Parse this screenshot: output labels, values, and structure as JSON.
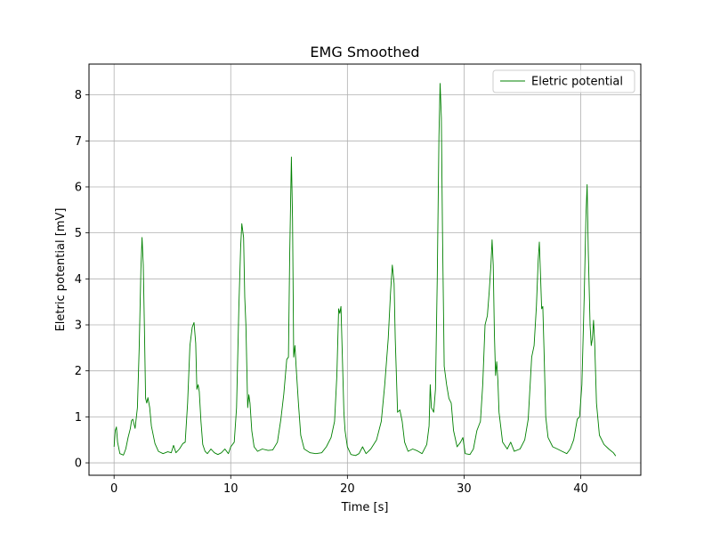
{
  "chart_data": {
    "type": "line",
    "title": "EMG Smoothed",
    "xlabel": "Time [s]",
    "ylabel": "Eletric potential [mV]",
    "xlim": [
      -2.15,
      45.15
    ],
    "ylim": [
      -0.27,
      8.67
    ],
    "xticks": [
      0,
      10,
      20,
      30,
      40
    ],
    "yticks": [
      0,
      1,
      2,
      3,
      4,
      5,
      6,
      7,
      8
    ],
    "grid": true,
    "legend": {
      "placement": "upper right"
    },
    "series": [
      {
        "name": "Eletric potential",
        "color": "#008000",
        "points": [
          [
            0.0,
            0.35
          ],
          [
            0.1,
            0.7
          ],
          [
            0.2,
            0.78
          ],
          [
            0.3,
            0.45
          ],
          [
            0.5,
            0.2
          ],
          [
            0.8,
            0.17
          ],
          [
            1.0,
            0.3
          ],
          [
            1.2,
            0.55
          ],
          [
            1.4,
            0.75
          ],
          [
            1.5,
            0.92
          ],
          [
            1.6,
            0.95
          ],
          [
            1.8,
            0.75
          ],
          [
            2.0,
            1.2
          ],
          [
            2.15,
            2.5
          ],
          [
            2.3,
            4.2
          ],
          [
            2.4,
            4.9
          ],
          [
            2.5,
            4.3
          ],
          [
            2.6,
            2.9
          ],
          [
            2.7,
            1.4
          ],
          [
            2.8,
            1.3
          ],
          [
            2.9,
            1.42
          ],
          [
            3.05,
            1.2
          ],
          [
            3.2,
            0.8
          ],
          [
            3.5,
            0.42
          ],
          [
            3.8,
            0.25
          ],
          [
            4.2,
            0.2
          ],
          [
            4.6,
            0.24
          ],
          [
            4.9,
            0.22
          ],
          [
            5.1,
            0.38
          ],
          [
            5.3,
            0.22
          ],
          [
            5.6,
            0.3
          ],
          [
            5.9,
            0.42
          ],
          [
            6.1,
            0.45
          ],
          [
            6.3,
            1.3
          ],
          [
            6.5,
            2.55
          ],
          [
            6.7,
            2.95
          ],
          [
            6.85,
            3.05
          ],
          [
            7.0,
            2.6
          ],
          [
            7.1,
            1.6
          ],
          [
            7.2,
            1.7
          ],
          [
            7.3,
            1.55
          ],
          [
            7.45,
            0.9
          ],
          [
            7.6,
            0.4
          ],
          [
            7.8,
            0.25
          ],
          [
            8.0,
            0.2
          ],
          [
            8.3,
            0.3
          ],
          [
            8.6,
            0.22
          ],
          [
            8.9,
            0.18
          ],
          [
            9.2,
            0.22
          ],
          [
            9.5,
            0.3
          ],
          [
            9.8,
            0.2
          ],
          [
            10.0,
            0.35
          ],
          [
            10.3,
            0.45
          ],
          [
            10.5,
            1.2
          ],
          [
            10.7,
            3.4
          ],
          [
            10.85,
            4.7
          ],
          [
            10.95,
            5.2
          ],
          [
            11.1,
            4.9
          ],
          [
            11.2,
            3.6
          ],
          [
            11.3,
            3.0
          ],
          [
            11.45,
            1.2
          ],
          [
            11.55,
            1.48
          ],
          [
            11.65,
            1.3
          ],
          [
            11.8,
            0.7
          ],
          [
            12.0,
            0.35
          ],
          [
            12.3,
            0.25
          ],
          [
            12.7,
            0.3
          ],
          [
            13.2,
            0.27
          ],
          [
            13.6,
            0.28
          ],
          [
            14.0,
            0.45
          ],
          [
            14.3,
            0.95
          ],
          [
            14.55,
            1.5
          ],
          [
            14.8,
            2.25
          ],
          [
            14.95,
            2.3
          ],
          [
            15.05,
            4.5
          ],
          [
            15.2,
            6.65
          ],
          [
            15.3,
            5.3
          ],
          [
            15.4,
            2.3
          ],
          [
            15.5,
            2.55
          ],
          [
            15.6,
            2.1
          ],
          [
            15.8,
            1.3
          ],
          [
            16.0,
            0.6
          ],
          [
            16.3,
            0.3
          ],
          [
            16.8,
            0.22
          ],
          [
            17.3,
            0.2
          ],
          [
            17.8,
            0.22
          ],
          [
            18.2,
            0.35
          ],
          [
            18.6,
            0.55
          ],
          [
            18.9,
            0.9
          ],
          [
            19.1,
            1.9
          ],
          [
            19.25,
            3.35
          ],
          [
            19.35,
            3.25
          ],
          [
            19.45,
            3.4
          ],
          [
            19.55,
            2.5
          ],
          [
            19.7,
            1.1
          ],
          [
            19.8,
            0.7
          ],
          [
            20.0,
            0.35
          ],
          [
            20.3,
            0.18
          ],
          [
            20.7,
            0.16
          ],
          [
            21.0,
            0.2
          ],
          [
            21.3,
            0.35
          ],
          [
            21.6,
            0.2
          ],
          [
            22.0,
            0.3
          ],
          [
            22.5,
            0.5
          ],
          [
            22.9,
            0.9
          ],
          [
            23.2,
            1.7
          ],
          [
            23.5,
            2.7
          ],
          [
            23.7,
            3.7
          ],
          [
            23.85,
            4.3
          ],
          [
            24.0,
            3.9
          ],
          [
            24.1,
            2.7
          ],
          [
            24.3,
            1.1
          ],
          [
            24.5,
            1.15
          ],
          [
            24.7,
            0.9
          ],
          [
            24.9,
            0.45
          ],
          [
            25.2,
            0.25
          ],
          [
            25.6,
            0.3
          ],
          [
            26.0,
            0.26
          ],
          [
            26.4,
            0.2
          ],
          [
            26.8,
            0.4
          ],
          [
            27.0,
            0.8
          ],
          [
            27.1,
            1.7
          ],
          [
            27.2,
            1.2
          ],
          [
            27.4,
            1.1
          ],
          [
            27.55,
            1.6
          ],
          [
            27.7,
            4.0
          ],
          [
            27.85,
            7.1
          ],
          [
            27.95,
            8.25
          ],
          [
            28.05,
            7.5
          ],
          [
            28.15,
            5.0
          ],
          [
            28.3,
            2.1
          ],
          [
            28.5,
            1.7
          ],
          [
            28.7,
            1.4
          ],
          [
            28.9,
            1.3
          ],
          [
            29.1,
            0.7
          ],
          [
            29.4,
            0.35
          ],
          [
            29.7,
            0.45
          ],
          [
            29.9,
            0.55
          ],
          [
            30.1,
            0.2
          ],
          [
            30.5,
            0.18
          ],
          [
            30.8,
            0.3
          ],
          [
            31.1,
            0.7
          ],
          [
            31.4,
            0.9
          ],
          [
            31.6,
            1.7
          ],
          [
            31.8,
            3.0
          ],
          [
            32.0,
            3.2
          ],
          [
            32.15,
            3.7
          ],
          [
            32.3,
            4.3
          ],
          [
            32.4,
            4.85
          ],
          [
            32.5,
            4.3
          ],
          [
            32.6,
            2.8
          ],
          [
            32.7,
            1.9
          ],
          [
            32.8,
            2.2
          ],
          [
            32.9,
            1.8
          ],
          [
            33.0,
            1.1
          ],
          [
            33.3,
            0.45
          ],
          [
            33.7,
            0.3
          ],
          [
            34.0,
            0.45
          ],
          [
            34.3,
            0.25
          ],
          [
            34.8,
            0.3
          ],
          [
            35.2,
            0.5
          ],
          [
            35.5,
            0.95
          ],
          [
            35.8,
            2.3
          ],
          [
            36.0,
            2.55
          ],
          [
            36.2,
            3.4
          ],
          [
            36.35,
            4.4
          ],
          [
            36.45,
            4.8
          ],
          [
            36.55,
            4.1
          ],
          [
            36.65,
            3.35
          ],
          [
            36.75,
            3.4
          ],
          [
            36.85,
            2.5
          ],
          [
            37.0,
            1.0
          ],
          [
            37.2,
            0.55
          ],
          [
            37.6,
            0.35
          ],
          [
            38.0,
            0.3
          ],
          [
            38.4,
            0.25
          ],
          [
            38.8,
            0.2
          ],
          [
            39.1,
            0.3
          ],
          [
            39.4,
            0.5
          ],
          [
            39.7,
            0.95
          ],
          [
            39.9,
            1.0
          ],
          [
            40.1,
            1.7
          ],
          [
            40.3,
            3.6
          ],
          [
            40.45,
            5.4
          ],
          [
            40.55,
            6.05
          ],
          [
            40.65,
            4.6
          ],
          [
            40.8,
            3.0
          ],
          [
            40.9,
            2.55
          ],
          [
            41.0,
            2.7
          ],
          [
            41.1,
            3.1
          ],
          [
            41.2,
            2.6
          ],
          [
            41.35,
            1.3
          ],
          [
            41.6,
            0.6
          ],
          [
            42.0,
            0.4
          ],
          [
            42.4,
            0.3
          ],
          [
            42.8,
            0.22
          ],
          [
            43.0,
            0.15
          ]
        ]
      }
    ]
  }
}
